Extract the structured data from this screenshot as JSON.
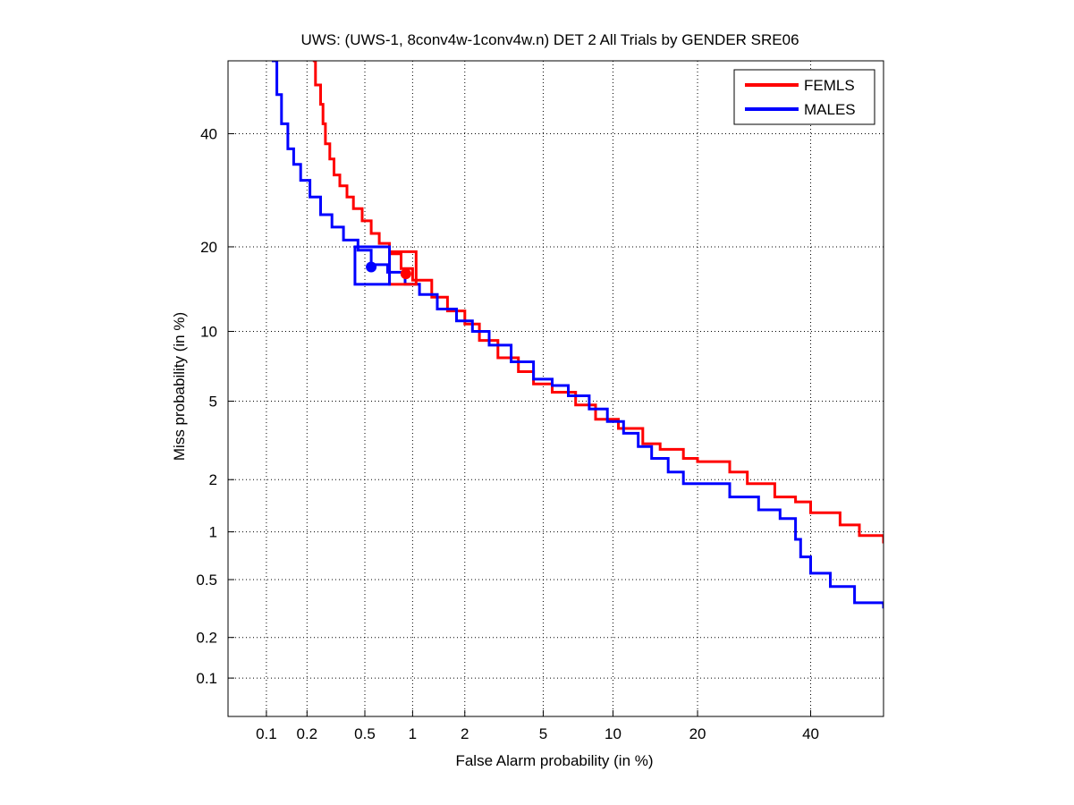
{
  "chart_data": {
    "type": "line",
    "title": "UWS: (UWS-1, 8conv4w-1conv4w.n) DET 2 All Trials by GENDER SRE06",
    "xlabel": "False Alarm probability (in %)",
    "ylabel": "Miss probability (in %)",
    "x_scale": "normal-deviate",
    "y_scale": "normal-deviate",
    "xlim": [
      0.05,
      55
    ],
    "ylim": [
      0.05,
      55
    ],
    "x_ticks": [
      "0.1",
      "0.2",
      "0.5",
      "1",
      "2",
      "5",
      "10",
      "20",
      "40"
    ],
    "y_ticks": [
      "0.1",
      "0.2",
      "0.5",
      "1",
      "2",
      "5",
      "10",
      "20",
      "40"
    ],
    "grid": true,
    "legend_position": "top-right",
    "series": [
      {
        "name": "FEMLS",
        "color": "#ff0000",
        "points": [
          [
            0.22,
            55
          ],
          [
            0.23,
            50
          ],
          [
            0.25,
            46
          ],
          [
            0.26,
            42
          ],
          [
            0.27,
            38
          ],
          [
            0.29,
            35
          ],
          [
            0.31,
            32
          ],
          [
            0.34,
            30
          ],
          [
            0.38,
            28
          ],
          [
            0.42,
            26
          ],
          [
            0.48,
            24
          ],
          [
            0.55,
            22
          ],
          [
            0.62,
            20.5
          ],
          [
            0.72,
            19
          ],
          [
            0.85,
            17
          ],
          [
            1.0,
            15.5
          ],
          [
            1.3,
            13.5
          ],
          [
            1.6,
            12
          ],
          [
            2.0,
            10.7
          ],
          [
            2.4,
            9.2
          ],
          [
            3.0,
            7.8
          ],
          [
            3.8,
            6.8
          ],
          [
            4.5,
            6.0
          ],
          [
            5.5,
            5.5
          ],
          [
            7.0,
            4.8
          ],
          [
            8.5,
            4.1
          ],
          [
            10.5,
            3.7
          ],
          [
            13,
            3.1
          ],
          [
            15,
            2.9
          ],
          [
            18,
            2.6
          ],
          [
            20,
            2.5
          ],
          [
            25,
            2.2
          ],
          [
            28,
            1.9
          ],
          [
            33,
            1.6
          ],
          [
            37,
            1.5
          ],
          [
            40,
            1.3
          ],
          [
            46,
            1.1
          ],
          [
            50,
            0.95
          ],
          [
            55,
            0.85
          ]
        ]
      },
      {
        "name": "MALES",
        "color": "#0000ff",
        "points": [
          [
            0.11,
            55
          ],
          [
            0.12,
            48
          ],
          [
            0.13,
            42
          ],
          [
            0.145,
            37
          ],
          [
            0.16,
            34
          ],
          [
            0.18,
            31
          ],
          [
            0.21,
            28
          ],
          [
            0.25,
            25
          ],
          [
            0.3,
            23
          ],
          [
            0.36,
            21
          ],
          [
            0.45,
            19.5
          ],
          [
            0.55,
            17.5
          ],
          [
            0.7,
            16.5
          ],
          [
            0.9,
            15
          ],
          [
            1.1,
            13.8
          ],
          [
            1.4,
            12.2
          ],
          [
            1.8,
            11.0
          ],
          [
            2.2,
            10.0
          ],
          [
            2.7,
            8.8
          ],
          [
            3.5,
            7.5
          ],
          [
            4.5,
            6.3
          ],
          [
            5.5,
            5.9
          ],
          [
            6.5,
            5.3
          ],
          [
            8.0,
            4.6
          ],
          [
            9.5,
            4.0
          ],
          [
            11,
            3.5
          ],
          [
            12.5,
            3.0
          ],
          [
            14,
            2.6
          ],
          [
            16,
            2.2
          ],
          [
            18,
            1.9
          ],
          [
            22,
            1.9
          ],
          [
            25,
            1.6
          ],
          [
            30,
            1.35
          ],
          [
            34,
            1.2
          ],
          [
            37,
            0.9
          ],
          [
            38,
            0.7
          ],
          [
            40,
            0.55
          ],
          [
            44,
            0.45
          ],
          [
            49,
            0.35
          ],
          [
            55,
            0.32
          ]
        ]
      }
    ],
    "markers": [
      {
        "series": "FEMLS",
        "fa": 0.91,
        "miss": 16.3,
        "box_fa": [
          0.72,
          1.05
        ],
        "box_miss": [
          15.0,
          19.3
        ]
      },
      {
        "series": "MALES",
        "fa": 0.55,
        "miss": 17.2,
        "box_fa": [
          0.43,
          0.72
        ],
        "box_miss": [
          15.0,
          20.0
        ]
      }
    ]
  }
}
